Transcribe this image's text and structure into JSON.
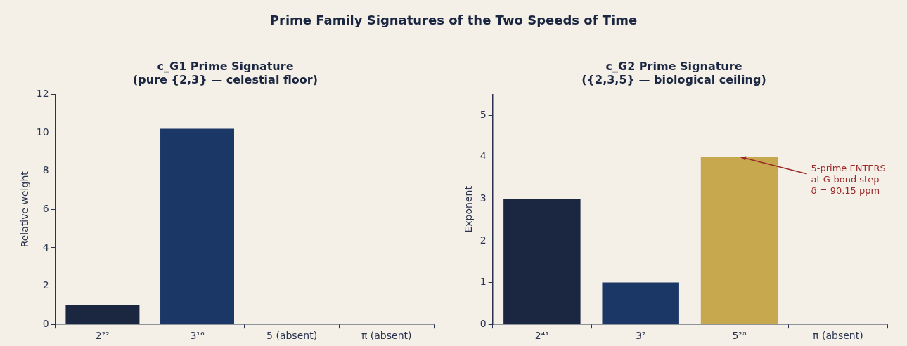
{
  "chart_data": [
    {
      "type": "bar",
      "title": "c_G1 Prime Signature",
      "subtitle": "(pure {2,3} — celestial floor)",
      "ylabel": "Relative weight",
      "annotations": [
        "Prime Family Signatures of the Two Speeds of Time"
      ],
      "categories": [
        "2²²",
        "3¹⁶",
        "5 (absent)",
        "π (absent)"
      ],
      "values": [
        1,
        10.2,
        0,
        0
      ],
      "colors": [
        "#1b2641",
        "#1b3766",
        "#1b2641",
        "#1b2641"
      ],
      "ylim": [
        0,
        12
      ],
      "yticks": [
        0,
        2,
        4,
        6,
        8,
        10,
        12
      ],
      "grid": false,
      "legend": false
    },
    {
      "type": "bar",
      "title": "c_G2 Prime Signature",
      "subtitle": "({2,3,5} — biological ceiling)",
      "ylabel": "Exponent",
      "annotations": [
        {
          "text": "5-prime ENTERS\nat G-bond step\nδ = 90.15 ppm",
          "x": "5²⁸",
          "y": 4
        }
      ],
      "categories": [
        "2⁴¹",
        "3⁷",
        "5²⁸",
        "π (absent)"
      ],
      "values": [
        3,
        1,
        4,
        0
      ],
      "colors": [
        "#1b2641",
        "#1b3766",
        "#c8a84e",
        "#1b2641"
      ],
      "ylim": [
        0,
        5.5
      ],
      "yticks": [
        0,
        1,
        2,
        3,
        4,
        5
      ],
      "grid": false,
      "legend": false
    }
  ]
}
